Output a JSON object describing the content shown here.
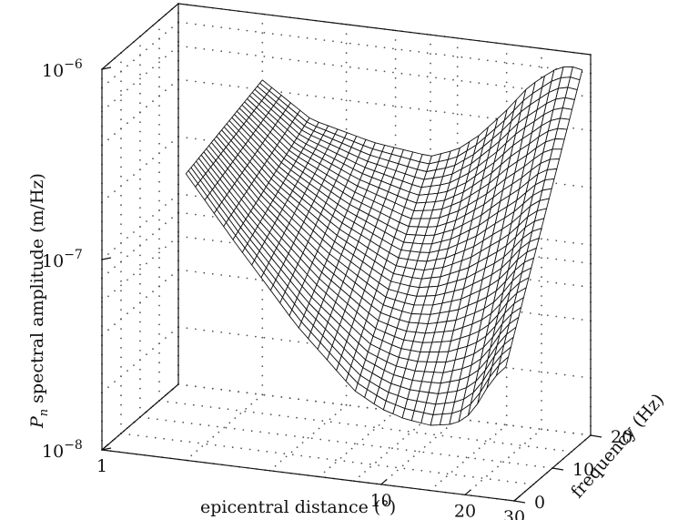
{
  "chart_data": {
    "type": "surface",
    "title": "",
    "xlabel": "epicentral distance (°)",
    "ylabel": "frequency (Hz)",
    "zlabel_symbol": "P",
    "zlabel_subscript": "n",
    "zlabel_rest": "spectral amplitude (m/Hz)",
    "x_scale": "log",
    "z_scale": "log",
    "xlim": [
      1,
      30
    ],
    "ylim": [
      0,
      20
    ],
    "zlim": [
      1e-08,
      1e-06
    ],
    "x_ticks": [
      {
        "value": 1,
        "label": "1"
      },
      {
        "value": 10,
        "label": "10"
      },
      {
        "value": 20,
        "label": "20"
      },
      {
        "value": 30,
        "label": "30"
      }
    ],
    "y_ticks": [
      {
        "value": 0,
        "label": "0"
      },
      {
        "value": 10,
        "label": "10"
      },
      {
        "value": 20,
        "label": "20"
      }
    ],
    "z_ticks": [
      {
        "value": 1e-08,
        "base": "10",
        "exp": "−8"
      },
      {
        "value": 1e-07,
        "base": "10",
        "exp": "−7"
      },
      {
        "value": 1e-06,
        "base": "10",
        "exp": "−6"
      }
    ],
    "grid": true,
    "surface": {
      "distance_range": [
        2,
        28
      ],
      "frequency_range": [
        0,
        20
      ],
      "profile_distance": [
        2,
        3,
        5,
        8,
        10,
        12,
        15,
        18,
        20,
        22,
        25,
        28
      ],
      "amplitude_at_0Hz": [
        3.2e-07,
        1.5e-07,
        6e-08,
        3e-08,
        2.5e-08,
        2.3e-08,
        2.2e-08,
        2.3e-08,
        2.5e-08,
        3e-08,
        4.2e-08,
        5e-08
      ],
      "amplitude_at_20Hz": [
        4.5e-07,
        3e-07,
        2.5e-07,
        2.3e-07,
        2.6e-07,
        3.2e-07,
        4.5e-07,
        6.2e-07,
        7e-07,
        7.8e-07,
        8.5e-07,
        8.2e-07
      ]
    }
  }
}
